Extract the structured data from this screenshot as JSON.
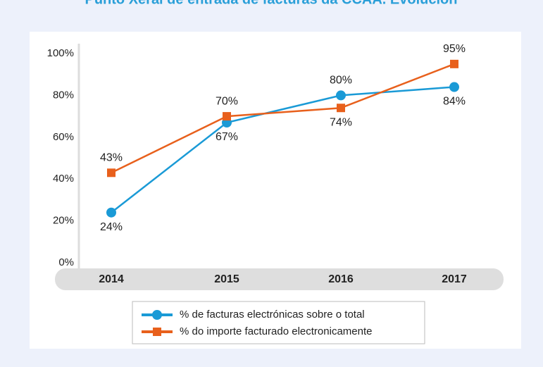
{
  "chart_data": {
    "type": "line",
    "title": "Punto Xeral de entrada de facturas da CCAA. Evolución",
    "categories": [
      "2014",
      "2015",
      "2016",
      "2017"
    ],
    "series": [
      {
        "name": "% de facturas electrónicas sobre o total",
        "color": "#1a9ad6",
        "marker": "circle",
        "values": [
          24,
          67,
          80,
          84
        ],
        "value_labels": [
          "24%",
          "67%",
          "80%",
          "84%"
        ]
      },
      {
        "name": "% do importe facturado electronicamente",
        "color": "#e8601c",
        "marker": "square",
        "values": [
          43,
          70,
          74,
          95
        ],
        "value_labels": [
          "43%",
          "70%",
          "74%",
          "95%"
        ]
      }
    ],
    "ylim": [
      0,
      100
    ],
    "yticks": [
      {
        "value": 0,
        "label": "0%"
      },
      {
        "value": 20,
        "label": "20%"
      },
      {
        "value": 40,
        "label": "40%"
      },
      {
        "value": 60,
        "label": "60%"
      },
      {
        "value": 80,
        "label": "80%"
      },
      {
        "value": 100,
        "label": "100%"
      }
    ],
    "legend": "bottom"
  }
}
